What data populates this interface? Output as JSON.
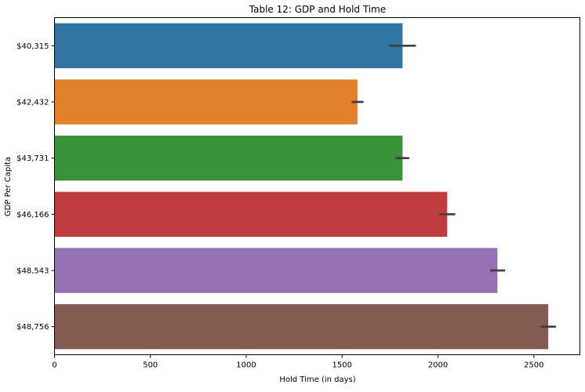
{
  "chart_data": {
    "type": "bar",
    "orientation": "horizontal",
    "title": "Table 12: GDP and Hold Time",
    "xlabel": "Hold Time (in days)",
    "ylabel": "GDP Per Capita",
    "categories": [
      "$40,315",
      "$42,432",
      "$43,731",
      "$46,166",
      "$48,543",
      "$48,756"
    ],
    "values": [
      1815,
      1580,
      1815,
      2048,
      2310,
      2575
    ],
    "error_low": [
      1745,
      1550,
      1778,
      2008,
      2272,
      2535
    ],
    "error_high": [
      1885,
      1612,
      1850,
      2090,
      2350,
      2615
    ],
    "xlim": [
      0,
      2740
    ],
    "xticks": [
      0,
      500,
      1000,
      1500,
      2000,
      2500
    ],
    "grid": false,
    "legend": "none",
    "colors": [
      "#3274a1",
      "#e1812c",
      "#3a923a",
      "#c03d3e",
      "#9372b2",
      "#845b53"
    ],
    "error_color": "#3f3f3f"
  }
}
